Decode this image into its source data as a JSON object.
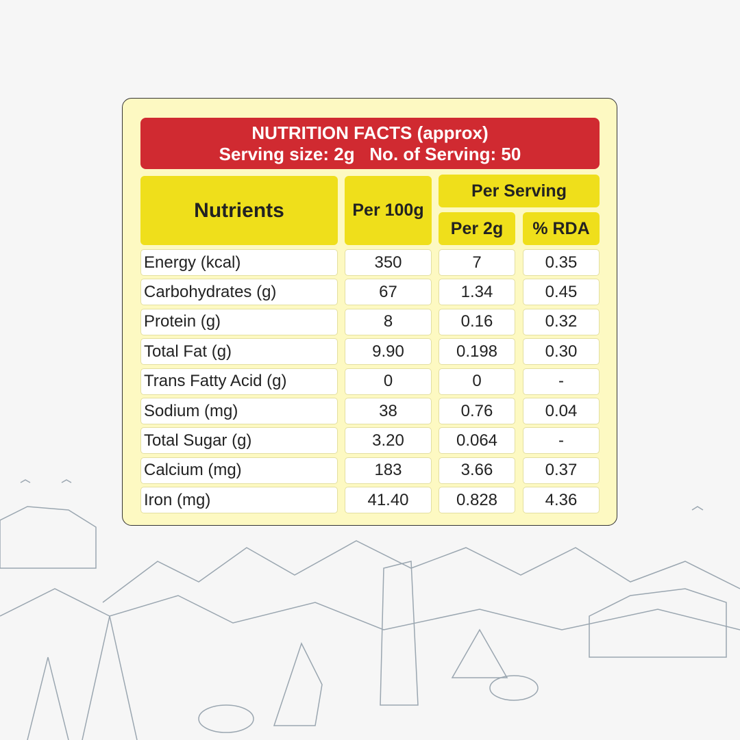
{
  "header": {
    "title": "NUTRITION FACTS (approx)",
    "serving": "Serving size: 2g   No. of Serving: 50"
  },
  "table": {
    "columns": {
      "nutrients": "Nutrients",
      "per100g": "Per 100g",
      "per_serving": "Per Serving",
      "per2g": "Per 2g",
      "rda": "% RDA"
    },
    "rows": [
      [
        "Energy (kcal)",
        "350",
        "7",
        "0.35"
      ],
      [
        "Carbohydrates (g)",
        "67",
        "1.34",
        "0.45"
      ],
      [
        "Protein (g)",
        "8",
        "0.16",
        "0.32"
      ],
      [
        "Total Fat (g)",
        "9.90",
        "0.198",
        "0.30"
      ],
      [
        "Trans Fatty Acid (g)",
        "0",
        "0",
        "-"
      ],
      [
        "Sodium (mg)",
        "38",
        "0.76",
        "0.04"
      ],
      [
        "Total Sugar (g)",
        "3.20",
        "0.064",
        "-"
      ],
      [
        "Calcium (mg)",
        "183",
        "3.66",
        "0.37"
      ],
      [
        "Iron (mg)",
        "41.40",
        "0.828",
        "4.36"
      ]
    ]
  }
}
